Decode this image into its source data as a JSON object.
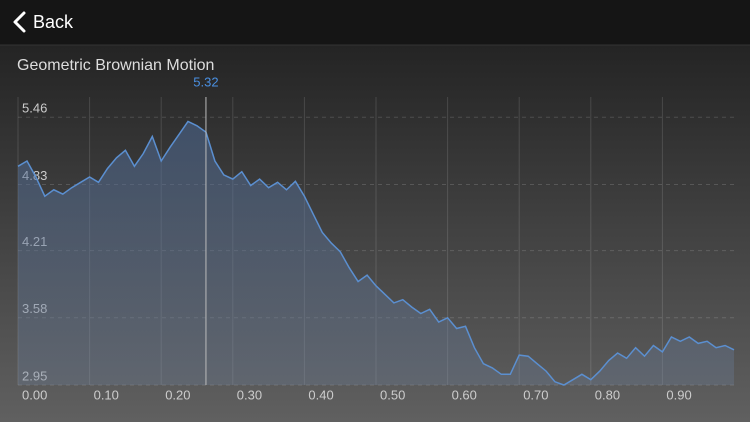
{
  "nav": {
    "back": "Back"
  },
  "chart_data": {
    "type": "area",
    "title": "Geometric Brownian Motion",
    "x": [
      0,
      0.0125,
      0.025,
      0.0375,
      0.05,
      0.0625,
      0.075,
      0.0875,
      0.1,
      0.1125,
      0.125,
      0.1375,
      0.15,
      0.1625,
      0.175,
      0.1875,
      0.2,
      0.2125,
      0.225,
      0.2375,
      0.25,
      0.2625,
      0.275,
      0.2875,
      0.3,
      0.3125,
      0.325,
      0.3375,
      0.35,
      0.3625,
      0.375,
      0.3875,
      0.4,
      0.4125,
      0.425,
      0.4375,
      0.45,
      0.4625,
      0.475,
      0.4875,
      0.5,
      0.5125,
      0.525,
      0.5375,
      0.55,
      0.5625,
      0.575,
      0.5875,
      0.6,
      0.6125,
      0.625,
      0.6375,
      0.65,
      0.6625,
      0.675,
      0.6875,
      0.7,
      0.7125,
      0.725,
      0.7375,
      0.75,
      0.7625,
      0.775,
      0.7875,
      0.8,
      0.8125,
      0.825,
      0.8375,
      0.85,
      0.8625,
      0.875,
      0.8875,
      0.9,
      0.9125,
      0.925,
      0.9375,
      0.95,
      0.9625,
      0.975,
      0.9875,
      1.0
    ],
    "series": [
      {
        "color": "#5b8fd0",
        "values": [
          5.0,
          5.05,
          4.9,
          4.72,
          4.78,
          4.74,
          4.8,
          4.85,
          4.9,
          4.85,
          4.98,
          5.08,
          5.15,
          5.0,
          5.12,
          5.28,
          5.05,
          5.18,
          5.3,
          5.42,
          5.38,
          5.32,
          5.05,
          4.92,
          4.88,
          4.95,
          4.82,
          4.88,
          4.8,
          4.85,
          4.78,
          4.86,
          4.72,
          4.55,
          4.38,
          4.28,
          4.2,
          4.05,
          3.92,
          3.98,
          3.88,
          3.8,
          3.72,
          3.75,
          3.68,
          3.62,
          3.66,
          3.54,
          3.58,
          3.48,
          3.5,
          3.3,
          3.15,
          3.11,
          3.05,
          3.05,
          3.23,
          3.22,
          3.15,
          3.08,
          2.98,
          2.95,
          3.0,
          3.05,
          3.0,
          3.08,
          3.18,
          3.25,
          3.2,
          3.3,
          3.22,
          3.32,
          3.26,
          3.4,
          3.36,
          3.4,
          3.34,
          3.36,
          3.3,
          3.32,
          3.28
        ]
      }
    ],
    "xlim": [
      0,
      1.0
    ],
    "xticks": [
      {
        "value": 0,
        "label": "0.00"
      },
      {
        "value": 0.1,
        "label": "0.10"
      },
      {
        "value": 0.2,
        "label": "0.20"
      },
      {
        "value": 0.3,
        "label": "0.30"
      },
      {
        "value": 0.4,
        "label": "0.40"
      },
      {
        "value": 0.5,
        "label": "0.50"
      },
      {
        "value": 0.6,
        "label": "0.60"
      },
      {
        "value": 0.7,
        "label": "0.70"
      },
      {
        "value": 0.8,
        "label": "0.80"
      },
      {
        "value": 0.9,
        "label": "0.90"
      }
    ],
    "ylim": [
      2.95,
      5.65
    ],
    "yticks": [
      2.95,
      3.58,
      4.21,
      4.83,
      5.46
    ],
    "grid": true,
    "crosshair": {
      "x": 0.2625,
      "y": 5.32
    }
  }
}
